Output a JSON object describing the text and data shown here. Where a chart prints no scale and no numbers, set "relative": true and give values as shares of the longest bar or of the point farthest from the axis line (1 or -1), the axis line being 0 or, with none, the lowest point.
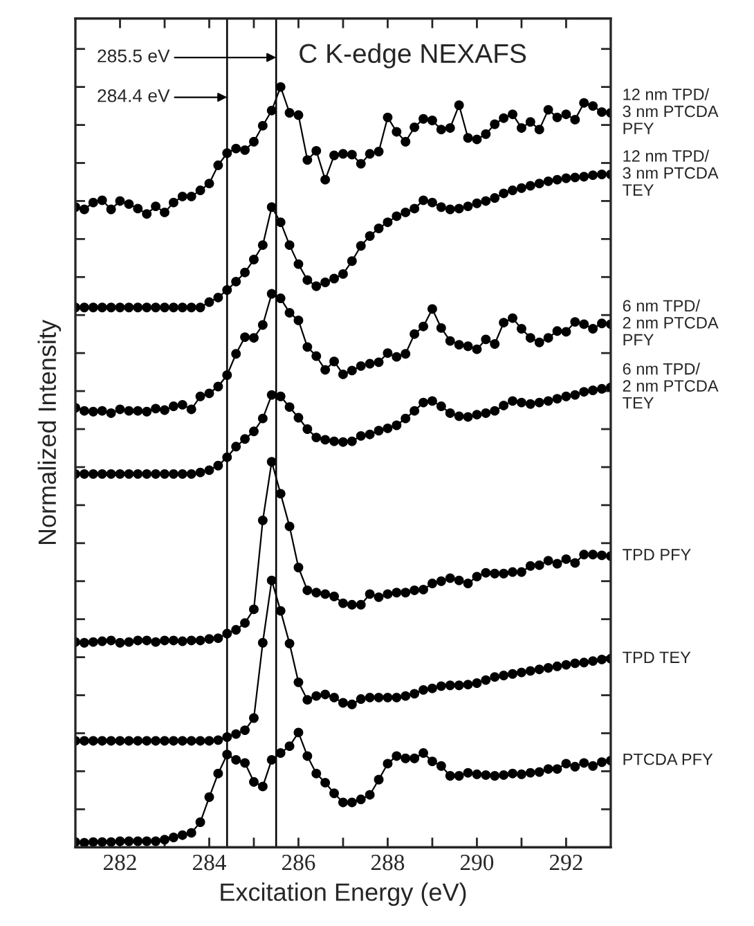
{
  "chart_data": {
    "type": "line",
    "title": "C K-edge NEXAFS",
    "xlabel": "Excitation Energy (eV)",
    "ylabel": "Normalized Intensity",
    "relative": true,
    "marker": "circle",
    "line_style": "solid",
    "legend": false,
    "grid": false,
    "tick_labels": "x",
    "xlim": [
      281,
      293
    ],
    "xticks": [
      282,
      {
        "value": 283,
        "label": null
      },
      284,
      {
        "value": 285,
        "label": null
      },
      286,
      {
        "value": 287,
        "label": null
      },
      288,
      {
        "value": 289,
        "label": null
      },
      290,
      {
        "value": 291,
        "label": null
      },
      292
    ],
    "x": [
      281.0,
      281.2,
      281.4,
      281.6,
      281.8,
      282.0,
      282.2,
      282.4,
      282.6,
      282.8,
      283.0,
      283.2,
      283.4,
      283.6,
      283.8,
      284.0,
      284.2,
      284.4,
      284.6,
      284.8,
      285.0,
      285.2,
      285.4,
      285.6,
      285.8,
      286.0,
      286.2,
      286.4,
      286.6,
      286.8,
      287.0,
      287.2,
      287.4,
      287.6,
      287.8,
      288.0,
      288.2,
      288.4,
      288.6,
      288.8,
      289.0,
      289.2,
      289.4,
      289.6,
      289.8,
      290.0,
      290.2,
      290.4,
      290.6,
      290.8,
      291.0,
      291.2,
      291.4,
      291.6,
      291.8,
      292.0,
      292.2,
      292.4,
      292.6,
      292.8,
      293.0
    ],
    "series": [
      {
        "name": "12 nm TPD/\n3 nm PTCDA\nPFY",
        "color": "#000000",
        "values": [
          0.842,
          0.839,
          0.848,
          0.851,
          0.839,
          0.85,
          0.846,
          0.84,
          0.833,
          0.843,
          0.835,
          0.848,
          0.856,
          0.856,
          0.864,
          0.873,
          0.897,
          0.913,
          0.919,
          0.917,
          0.928,
          0.949,
          0.969,
          1.0,
          0.966,
          0.963,
          0.904,
          0.916,
          0.878,
          0.91,
          0.912,
          0.911,
          0.899,
          0.912,
          0.915,
          0.96,
          0.941,
          0.928,
          0.947,
          0.958,
          0.956,
          0.944,
          0.946,
          0.976,
          0.933,
          0.931,
          0.938,
          0.951,
          0.959,
          0.964,
          0.946,
          0.954,
          0.944,
          0.97,
          0.96,
          0.964,
          0.957,
          0.979,
          0.975,
          0.967,
          0.966
        ]
      },
      {
        "name": "12 nm TPD/\n3 nm PTCDA\nTEY",
        "color": "#000000",
        "values": [
          0.71,
          0.71,
          0.71,
          0.71,
          0.71,
          0.71,
          0.71,
          0.71,
          0.71,
          0.71,
          0.71,
          0.71,
          0.71,
          0.71,
          0.71,
          0.717,
          0.723,
          0.733,
          0.744,
          0.756,
          0.773,
          0.792,
          0.842,
          0.822,
          0.792,
          0.767,
          0.746,
          0.738,
          0.743,
          0.748,
          0.754,
          0.771,
          0.791,
          0.804,
          0.814,
          0.822,
          0.83,
          0.835,
          0.84,
          0.851,
          0.848,
          0.842,
          0.839,
          0.84,
          0.843,
          0.847,
          0.85,
          0.854,
          0.86,
          0.864,
          0.867,
          0.87,
          0.873,
          0.876,
          0.878,
          0.88,
          0.881,
          0.882,
          0.884,
          0.885,
          0.885
        ]
      },
      {
        "name": "6 nm TPD/\n2 nm PTCDA\nPFY",
        "color": "#000000",
        "values": [
          0.578,
          0.574,
          0.573,
          0.574,
          0.571,
          0.576,
          0.574,
          0.574,
          0.573,
          0.577,
          0.575,
          0.58,
          0.582,
          0.576,
          0.593,
          0.597,
          0.606,
          0.621,
          0.649,
          0.671,
          0.67,
          0.687,
          0.728,
          0.722,
          0.703,
          0.693,
          0.658,
          0.646,
          0.628,
          0.639,
          0.622,
          0.627,
          0.633,
          0.636,
          0.638,
          0.65,
          0.645,
          0.649,
          0.675,
          0.685,
          0.708,
          0.683,
          0.666,
          0.661,
          0.659,
          0.655,
          0.668,
          0.662,
          0.69,
          0.696,
          0.682,
          0.67,
          0.664,
          0.67,
          0.679,
          0.678,
          0.691,
          0.688,
          0.682,
          0.689,
          0.688
        ]
      },
      {
        "name": "6 nm TPD/\n2 nm PTCDA\nTEY",
        "color": "#000000",
        "values": [
          0.491,
          0.491,
          0.491,
          0.491,
          0.491,
          0.491,
          0.491,
          0.491,
          0.491,
          0.491,
          0.491,
          0.491,
          0.491,
          0.491,
          0.493,
          0.496,
          0.502,
          0.513,
          0.527,
          0.537,
          0.547,
          0.564,
          0.595,
          0.593,
          0.579,
          0.565,
          0.55,
          0.539,
          0.536,
          0.534,
          0.533,
          0.534,
          0.541,
          0.543,
          0.548,
          0.551,
          0.555,
          0.564,
          0.574,
          0.585,
          0.587,
          0.58,
          0.571,
          0.567,
          0.566,
          0.569,
          0.571,
          0.574,
          0.581,
          0.587,
          0.585,
          0.583,
          0.585,
          0.587,
          0.59,
          0.593,
          0.595,
          0.599,
          0.601,
          0.603,
          0.605
        ]
      },
      {
        "name": "TPD PFY",
        "color": "#000000",
        "values": [
          0.27,
          0.269,
          0.27,
          0.271,
          0.272,
          0.269,
          0.27,
          0.272,
          0.272,
          0.27,
          0.272,
          0.272,
          0.271,
          0.272,
          0.272,
          0.274,
          0.275,
          0.281,
          0.286,
          0.295,
          0.313,
          0.43,
          0.507,
          0.465,
          0.422,
          0.368,
          0.338,
          0.335,
          0.333,
          0.33,
          0.321,
          0.319,
          0.319,
          0.333,
          0.329,
          0.333,
          0.335,
          0.335,
          0.338,
          0.339,
          0.347,
          0.35,
          0.354,
          0.351,
          0.347,
          0.356,
          0.361,
          0.36,
          0.36,
          0.362,
          0.362,
          0.37,
          0.371,
          0.377,
          0.373,
          0.379,
          0.374,
          0.385,
          0.385,
          0.384,
          0.383
        ]
      },
      {
        "name": "TPD TEY",
        "color": "#000000",
        "values": [
          0.14,
          0.14,
          0.14,
          0.14,
          0.14,
          0.14,
          0.14,
          0.14,
          0.14,
          0.14,
          0.14,
          0.14,
          0.14,
          0.14,
          0.14,
          0.14,
          0.141,
          0.145,
          0.149,
          0.154,
          0.17,
          0.269,
          0.351,
          0.311,
          0.268,
          0.217,
          0.194,
          0.199,
          0.201,
          0.197,
          0.19,
          0.188,
          0.195,
          0.197,
          0.197,
          0.197,
          0.197,
          0.199,
          0.202,
          0.207,
          0.209,
          0.212,
          0.213,
          0.213,
          0.214,
          0.216,
          0.22,
          0.224,
          0.226,
          0.228,
          0.23,
          0.232,
          0.234,
          0.236,
          0.238,
          0.24,
          0.242,
          0.243,
          0.245,
          0.247,
          0.248
        ]
      },
      {
        "name": "PTCDA PFY",
        "color": "#000000",
        "values": [
          0.007,
          0.006,
          0.007,
          0.007,
          0.007,
          0.008,
          0.008,
          0.008,
          0.008,
          0.008,
          0.01,
          0.013,
          0.016,
          0.019,
          0.033,
          0.066,
          0.097,
          0.122,
          0.115,
          0.111,
          0.086,
          0.08,
          0.115,
          0.124,
          0.133,
          0.151,
          0.12,
          0.097,
          0.085,
          0.071,
          0.059,
          0.059,
          0.063,
          0.069,
          0.089,
          0.11,
          0.12,
          0.117,
          0.117,
          0.124,
          0.113,
          0.107,
          0.094,
          0.094,
          0.098,
          0.096,
          0.095,
          0.094,
          0.095,
          0.097,
          0.096,
          0.098,
          0.099,
          0.103,
          0.103,
          0.11,
          0.106,
          0.111,
          0.107,
          0.112,
          0.114
        ]
      }
    ],
    "ref_lines": [
      {
        "axis": "x",
        "value": 284.4,
        "label": "284.4 eV",
        "color": "#000000",
        "line_style": "solid"
      },
      {
        "axis": "x",
        "value": 285.5,
        "label": "285.5 eV",
        "color": "#000000",
        "line_style": "solid"
      }
    ]
  }
}
